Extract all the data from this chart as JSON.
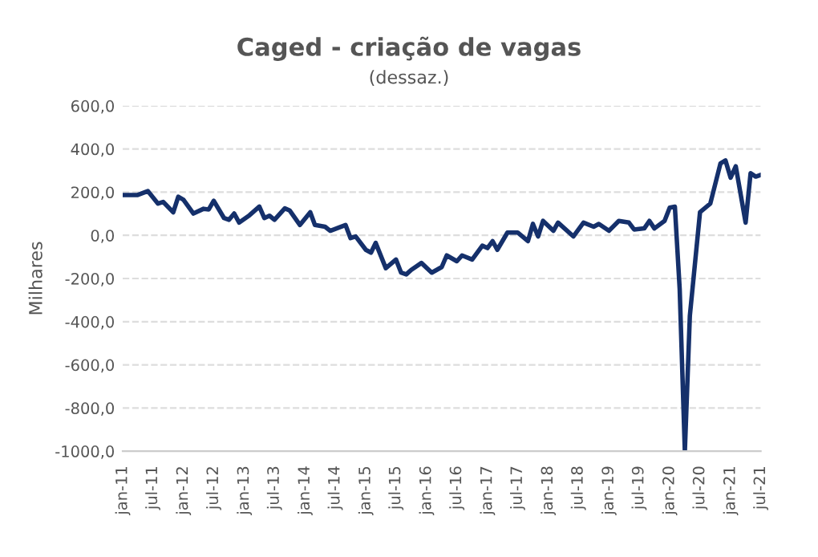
{
  "chart_data": {
    "type": "line",
    "title": "Caged - criação de vagas",
    "subtitle": "(dessaz.)",
    "ylabel": "Milhares",
    "x": [
      "2011-01",
      "2011-04",
      "2011-06",
      "2011-08",
      "2011-09",
      "2011-11",
      "2011-12",
      "2012-01",
      "2012-03",
      "2012-05",
      "2012-06",
      "2012-07",
      "2012-09",
      "2012-10",
      "2012-11",
      "2012-12",
      "2013-02",
      "2013-04",
      "2013-05",
      "2013-06",
      "2013-07",
      "2013-09",
      "2013-10",
      "2013-12",
      "2014-02",
      "2014-03",
      "2014-05",
      "2014-06",
      "2014-09",
      "2014-10",
      "2014-11",
      "2015-01",
      "2015-02",
      "2015-03",
      "2015-05",
      "2015-07",
      "2015-08",
      "2015-09",
      "2015-10",
      "2015-12",
      "2016-02",
      "2016-04",
      "2016-05",
      "2016-07",
      "2016-08",
      "2016-10",
      "2016-12",
      "2017-01",
      "2017-02",
      "2017-03",
      "2017-05",
      "2017-07",
      "2017-09",
      "2017-10",
      "2017-11",
      "2017-12",
      "2018-02",
      "2018-03",
      "2018-06",
      "2018-08",
      "2018-10",
      "2018-11",
      "2019-01",
      "2019-03",
      "2019-05",
      "2019-06",
      "2019-08",
      "2019-09",
      "2019-10",
      "2019-12",
      "2020-01",
      "2020-02",
      "2020-03",
      "2020-04",
      "2020-05",
      "2020-07",
      "2020-09",
      "2020-11",
      "2020-12",
      "2021-01",
      "2021-02",
      "2021-04",
      "2021-05",
      "2021-06",
      "2021-07"
    ],
    "series": [
      {
        "color": "#15306b",
        "values": [
          187,
          187,
          205,
          147,
          155,
          107,
          179,
          165,
          101,
          123,
          120,
          160,
          80,
          72,
          101,
          59,
          93,
          133,
          80,
          91,
          72,
          125,
          115,
          48,
          107,
          48,
          40,
          21,
          48,
          -13,
          -5,
          -67,
          -80,
          -35,
          -152,
          -112,
          -173,
          -181,
          -160,
          -128,
          -173,
          -147,
          -93,
          -120,
          -93,
          -112,
          -48,
          -59,
          -27,
          -67,
          13,
          13,
          -27,
          53,
          -5,
          67,
          21,
          59,
          -5,
          59,
          40,
          53,
          21,
          67,
          59,
          27,
          32,
          67,
          32,
          67,
          128,
          133,
          -250,
          -1000,
          -373,
          107,
          147,
          333,
          347,
          267,
          320,
          59,
          288,
          272,
          280
        ]
      }
    ],
    "xlim": [
      "2011-01",
      "2021-07"
    ],
    "xticks": [
      {
        "value": "2011-01",
        "label": "jan-11"
      },
      {
        "value": "2011-07",
        "label": "jul-11"
      },
      {
        "value": "2012-01",
        "label": "jan-12"
      },
      {
        "value": "2012-07",
        "label": "jul-12"
      },
      {
        "value": "2013-01",
        "label": "jan-13"
      },
      {
        "value": "2013-07",
        "label": "jul-13"
      },
      {
        "value": "2014-01",
        "label": "jan-14"
      },
      {
        "value": "2014-07",
        "label": "jul-14"
      },
      {
        "value": "2015-01",
        "label": "jan-15"
      },
      {
        "value": "2015-07",
        "label": "jul-15"
      },
      {
        "value": "2016-01",
        "label": "jan-16"
      },
      {
        "value": "2016-07",
        "label": "jul-16"
      },
      {
        "value": "2017-01",
        "label": "jan-17"
      },
      {
        "value": "2017-07",
        "label": "jul-17"
      },
      {
        "value": "2018-01",
        "label": "jan-18"
      },
      {
        "value": "2018-07",
        "label": "jul-18"
      },
      {
        "value": "2019-01",
        "label": "jan-19"
      },
      {
        "value": "2019-07",
        "label": "jul-19"
      },
      {
        "value": "2020-01",
        "label": "jan-20"
      },
      {
        "value": "2020-07",
        "label": "jul-20"
      },
      {
        "value": "2021-01",
        "label": "jan-21"
      },
      {
        "value": "2021-07",
        "label": "jul-21"
      }
    ],
    "ylim": [
      -1000,
      600
    ],
    "yticks": [
      {
        "value": -1000,
        "label": "-1000,0"
      },
      {
        "value": -800,
        "label": "-800,0"
      },
      {
        "value": -600,
        "label": "-600,0"
      },
      {
        "value": -400,
        "label": "-400,0"
      },
      {
        "value": -200,
        "label": "-200,0"
      },
      {
        "value": 0,
        "label": "0,0"
      },
      {
        "value": 200,
        "label": "200,0"
      },
      {
        "value": 400,
        "label": "400,0"
      },
      {
        "value": 600,
        "label": "600,0"
      }
    ],
    "grid": "y",
    "line_style": "solid"
  }
}
